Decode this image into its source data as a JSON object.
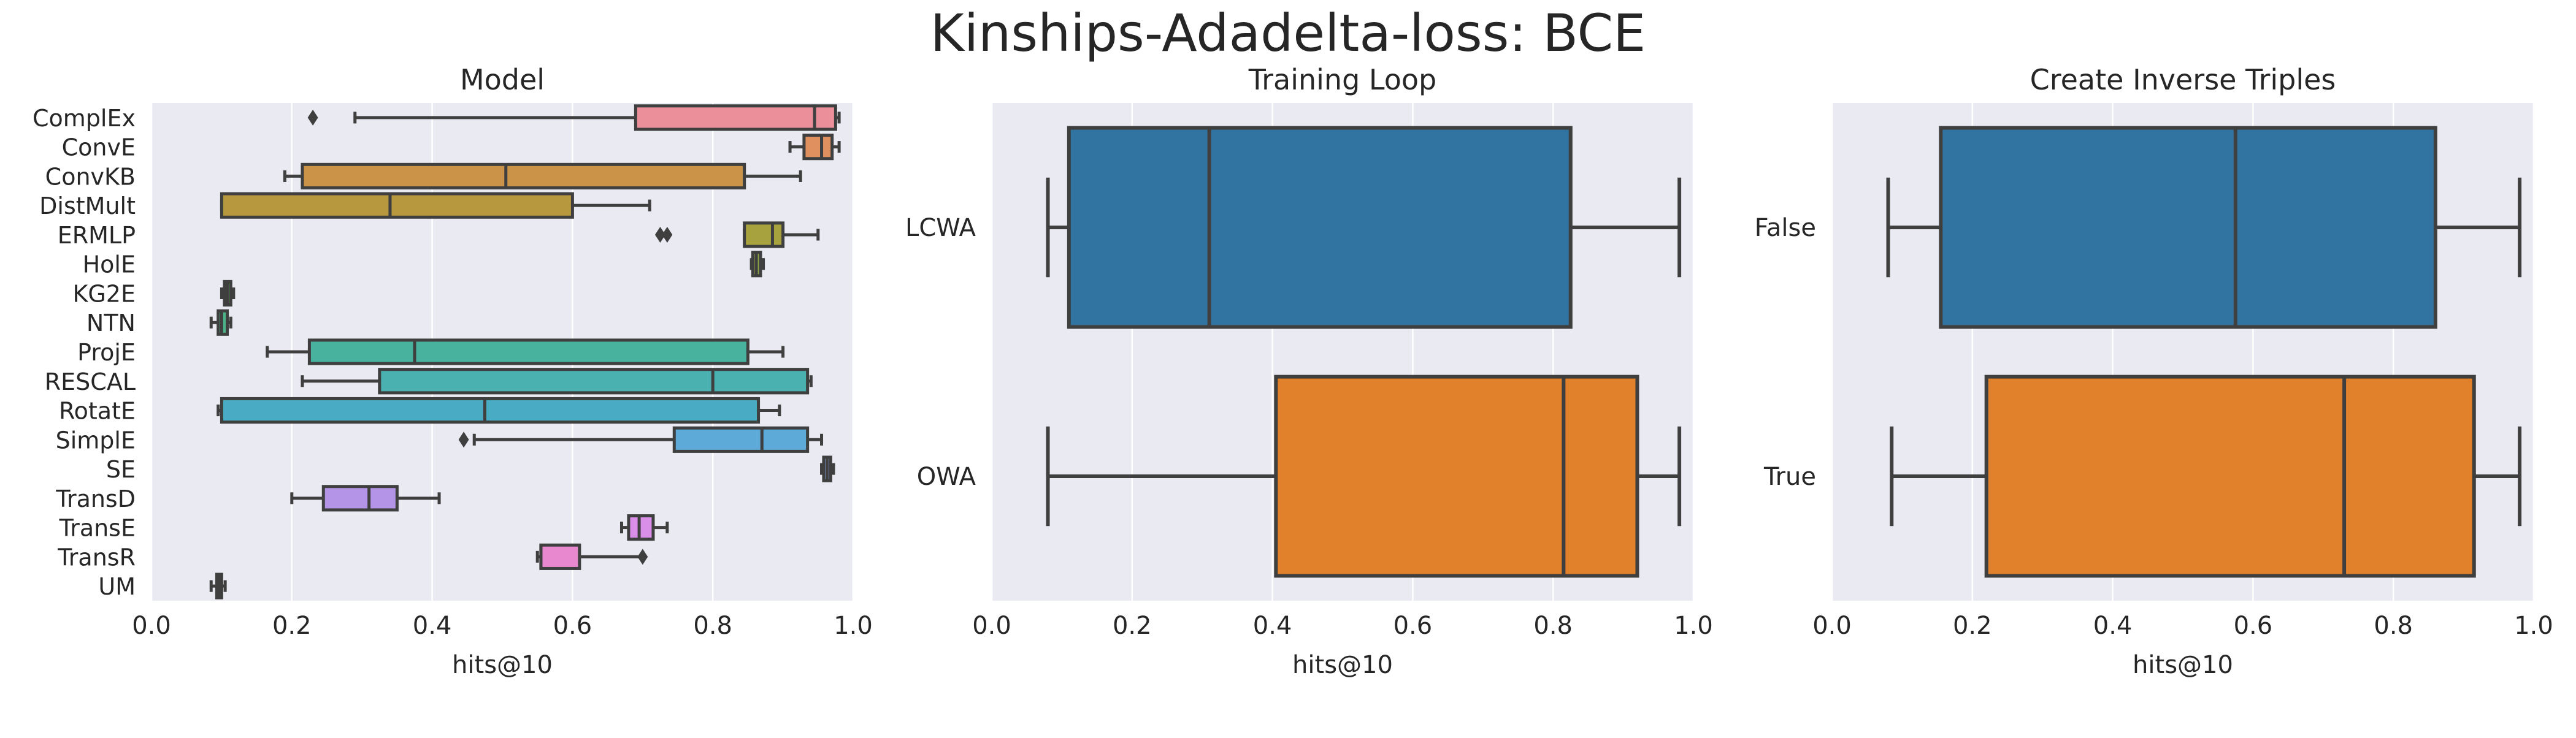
{
  "suptitle": "Kinships-Adadelta-loss: BCE",
  "chart_data": [
    {
      "type": "box",
      "orientation": "horizontal",
      "title": "Model",
      "xlabel": "hits@10",
      "ylabel": "",
      "xlim": [
        0.0,
        1.0
      ],
      "xticks": [
        "0.0",
        "0.2",
        "0.4",
        "0.6",
        "0.8",
        "1.0"
      ],
      "grid": true,
      "categories": [
        "ComplEx",
        "ConvE",
        "ConvKB",
        "DistMult",
        "ERMLP",
        "HolE",
        "KG2E",
        "NTN",
        "ProjE",
        "RESCAL",
        "RotatE",
        "SimplE",
        "SE",
        "TransD",
        "TransE",
        "TransR",
        "UM"
      ],
      "colors": [
        "#eb8f9b",
        "#e0905f",
        "#cb9347",
        "#b8983e",
        "#a7a23d",
        "#8fa842",
        "#57b047",
        "#4db48a",
        "#48b29f",
        "#4ab0b0",
        "#4aacc4",
        "#5daad8",
        "#8ca4e8",
        "#b494e6",
        "#d98ee8",
        "#e889cf",
        "#ec8cb6"
      ],
      "boxes": [
        {
          "whislo": 0.29,
          "q1": 0.69,
          "med": 0.945,
          "q3": 0.975,
          "whishi": 0.98,
          "fliers": [
            0.23
          ]
        },
        {
          "whislo": 0.91,
          "q1": 0.93,
          "med": 0.955,
          "q3": 0.97,
          "whishi": 0.98,
          "fliers": []
        },
        {
          "whislo": 0.19,
          "q1": 0.215,
          "med": 0.505,
          "q3": 0.845,
          "whishi": 0.925,
          "fliers": []
        },
        {
          "whislo": 0.1,
          "q1": 0.1,
          "med": 0.34,
          "q3": 0.6,
          "whishi": 0.71,
          "fliers": []
        },
        {
          "whislo": 0.845,
          "q1": 0.845,
          "med": 0.885,
          "q3": 0.9,
          "whishi": 0.95,
          "fliers": [
            0.725,
            0.735
          ]
        },
        {
          "whislo": 0.855,
          "q1": 0.857,
          "med": 0.862,
          "q3": 0.868,
          "whishi": 0.872,
          "fliers": []
        },
        {
          "whislo": 0.1,
          "q1": 0.104,
          "med": 0.108,
          "q3": 0.113,
          "whishi": 0.117,
          "fliers": []
        },
        {
          "whislo": 0.085,
          "q1": 0.095,
          "med": 0.1,
          "q3": 0.108,
          "whishi": 0.113,
          "fliers": []
        },
        {
          "whislo": 0.165,
          "q1": 0.225,
          "med": 0.375,
          "q3": 0.85,
          "whishi": 0.9,
          "fliers": []
        },
        {
          "whislo": 0.215,
          "q1": 0.325,
          "med": 0.8,
          "q3": 0.935,
          "whishi": 0.94,
          "fliers": []
        },
        {
          "whislo": 0.095,
          "q1": 0.1,
          "med": 0.475,
          "q3": 0.865,
          "whishi": 0.895,
          "fliers": []
        },
        {
          "whislo": 0.46,
          "q1": 0.745,
          "med": 0.87,
          "q3": 0.935,
          "whishi": 0.955,
          "fliers": [
            0.445
          ]
        },
        {
          "whislo": 0.955,
          "q1": 0.958,
          "med": 0.963,
          "q3": 0.968,
          "whishi": 0.972,
          "fliers": []
        },
        {
          "whislo": 0.2,
          "q1": 0.245,
          "med": 0.31,
          "q3": 0.35,
          "whishi": 0.41,
          "fliers": []
        },
        {
          "whislo": 0.67,
          "q1": 0.68,
          "med": 0.695,
          "q3": 0.715,
          "whishi": 0.735,
          "fliers": []
        },
        {
          "whislo": 0.55,
          "q1": 0.555,
          "med": 0.555,
          "q3": 0.61,
          "whishi": 0.7,
          "fliers": [
            0.7
          ]
        },
        {
          "whislo": 0.085,
          "q1": 0.093,
          "med": 0.097,
          "q3": 0.1,
          "whishi": 0.105,
          "fliers": []
        }
      ]
    },
    {
      "type": "box",
      "orientation": "horizontal",
      "title": "Training Loop",
      "xlabel": "hits@10",
      "ylabel": "",
      "xlim": [
        0.0,
        1.0
      ],
      "xticks": [
        "0.0",
        "0.2",
        "0.4",
        "0.6",
        "0.8",
        "1.0"
      ],
      "grid": true,
      "categories": [
        "LCWA",
        "OWA"
      ],
      "colors": [
        "#3274a1",
        "#e1812c"
      ],
      "boxes": [
        {
          "whislo": 0.08,
          "q1": 0.11,
          "med": 0.31,
          "q3": 0.825,
          "whishi": 0.98,
          "fliers": []
        },
        {
          "whislo": 0.08,
          "q1": 0.405,
          "med": 0.815,
          "q3": 0.92,
          "whishi": 0.98,
          "fliers": []
        }
      ]
    },
    {
      "type": "box",
      "orientation": "horizontal",
      "title": "Create Inverse Triples",
      "xlabel": "hits@10",
      "ylabel": "",
      "xlim": [
        0.0,
        1.0
      ],
      "xticks": [
        "0.0",
        "0.2",
        "0.4",
        "0.6",
        "0.8",
        "1.0"
      ],
      "grid": true,
      "categories": [
        "False",
        "True"
      ],
      "colors": [
        "#3274a1",
        "#e1812c"
      ],
      "boxes": [
        {
          "whislo": 0.08,
          "q1": 0.155,
          "med": 0.575,
          "q3": 0.86,
          "whishi": 0.98,
          "fliers": []
        },
        {
          "whislo": 0.085,
          "q1": 0.22,
          "med": 0.73,
          "q3": 0.915,
          "whishi": 0.98,
          "fliers": []
        }
      ]
    }
  ]
}
